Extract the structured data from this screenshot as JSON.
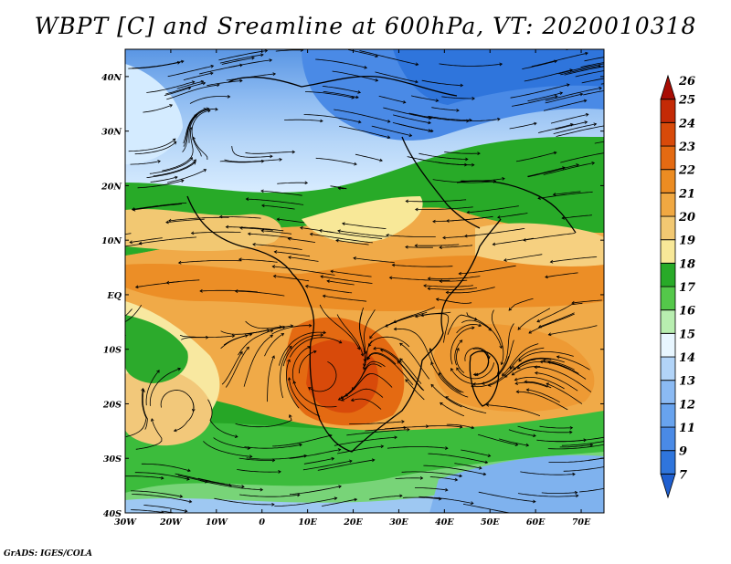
{
  "title": "WBPT [C] and Sreamline at 600hPa, VT: 2020010318",
  "credit": "GrADS: IGES/COLA",
  "map": {
    "lon_range": [
      -30,
      75
    ],
    "lat_range": [
      -40,
      45
    ],
    "lon_ticks": [
      "30W",
      "20W",
      "10W",
      "0",
      "10E",
      "20E",
      "30E",
      "40E",
      "50E",
      "60E",
      "70E"
    ],
    "lat_ticks": [
      "40S",
      "30S",
      "20S",
      "10S",
      "EQ",
      "10N",
      "20N",
      "30N",
      "40N"
    ]
  },
  "colorbar": {
    "levels": [
      "7",
      "9",
      "11",
      "12",
      "13",
      "14",
      "15",
      "16",
      "17",
      "18",
      "19",
      "20",
      "21",
      "22",
      "23",
      "24",
      "25",
      "26"
    ],
    "colors": [
      "#1f5fd0",
      "#2f75dc",
      "#4a8ae6",
      "#68a3ee",
      "#8bbaf3",
      "#b2d4f8",
      "#e8f6ff",
      "#b8eeb0",
      "#54c84a",
      "#28aa28",
      "#f8e898",
      "#f2c872",
      "#f0a842",
      "#ec8c22",
      "#e46a12",
      "#d84a0a",
      "#c42a06",
      "#a80c04"
    ]
  }
}
